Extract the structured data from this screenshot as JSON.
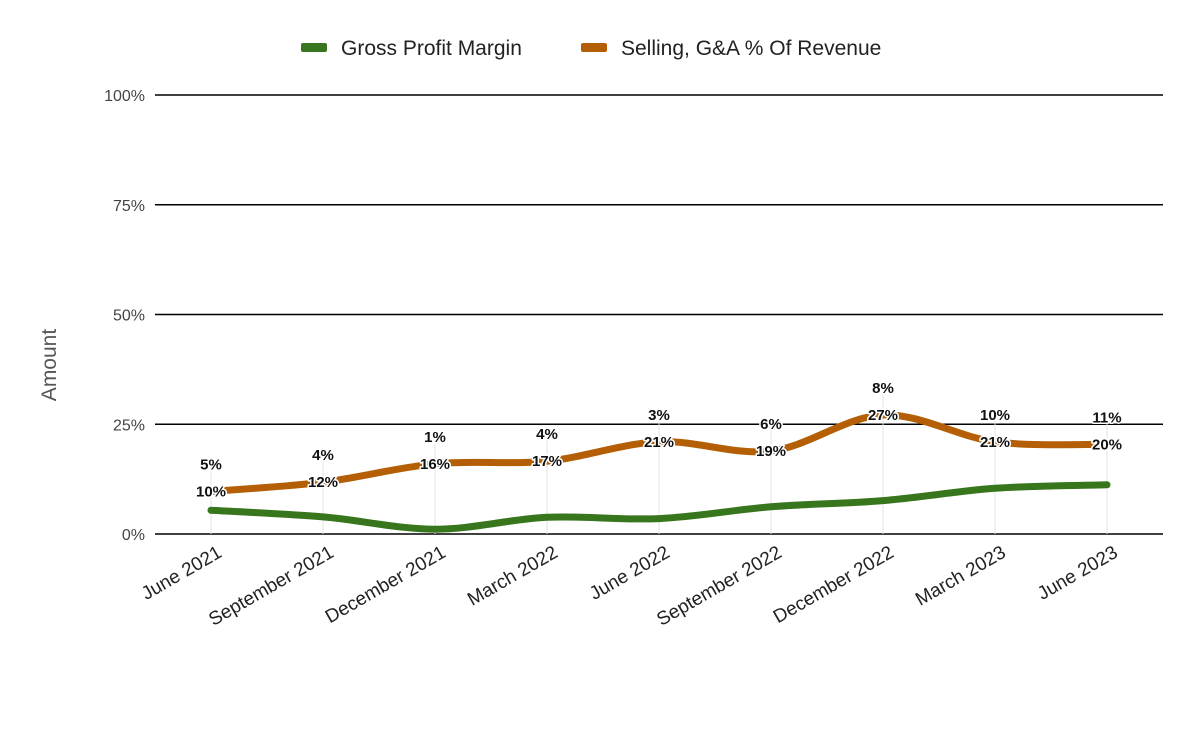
{
  "chart_data": {
    "type": "line",
    "title": "",
    "xlabel": "",
    "ylabel": "Amount",
    "ylim": [
      0,
      100
    ],
    "yticks": [
      0,
      25,
      50,
      75,
      100
    ],
    "ytick_labels": [
      "0%",
      "25%",
      "50%",
      "75%",
      "100%"
    ],
    "grid": true,
    "legend": "top",
    "categories": [
      "June 2021",
      "September 2021",
      "December 2021",
      "March 2022",
      "June 2022",
      "September 2022",
      "December 2022",
      "March 2023",
      "June 2023"
    ],
    "series": [
      {
        "name": "Gross Profit Margin",
        "color": "#38761d",
        "values": [
          5.4,
          3.9,
          1.1,
          3.8,
          3.5,
          6.2,
          7.6,
          10.4,
          11.2
        ],
        "labels": [
          "5%",
          "4%",
          "1%",
          "4%",
          "3%",
          "6%",
          "8%",
          "10%",
          "11%"
        ]
      },
      {
        "name": "Selling, G&A % Of Revenue",
        "color": "#b45f06",
        "values": [
          9.7,
          11.8,
          16.0,
          16.6,
          21.0,
          18.9,
          27.1,
          21.0,
          20.4
        ],
        "labels": [
          "10%",
          "12%",
          "16%",
          "17%",
          "21%",
          "19%",
          "27%",
          "21%",
          "20%"
        ]
      }
    ]
  }
}
